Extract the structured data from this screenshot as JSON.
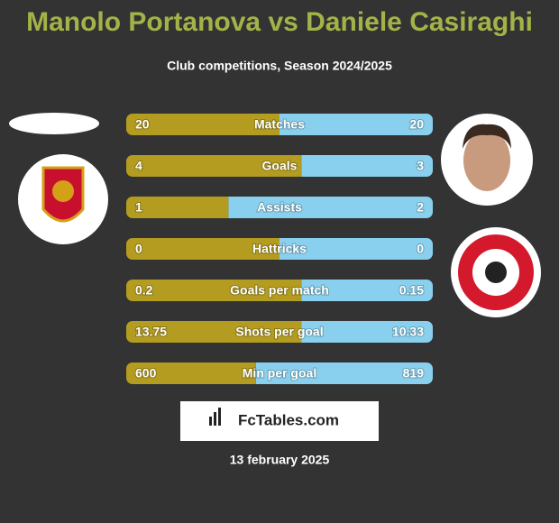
{
  "title": "Manolo Portanova vs Daniele Casiraghi",
  "subtitle": "Club competitions, Season 2024/2025",
  "rows": [
    {
      "label": "Matches",
      "left": 20,
      "right": 20
    },
    {
      "label": "Goals",
      "left": 4,
      "right": 3
    },
    {
      "label": "Assists",
      "left": 1,
      "right": 2
    },
    {
      "label": "Hattricks",
      "left": 0,
      "right": 0
    },
    {
      "label": "Goals per match",
      "left": 0.2,
      "right": 0.15
    },
    {
      "label": "Shots per goal",
      "left": 13.75,
      "right": 10.33
    },
    {
      "label": "Min per goal",
      "left": 600,
      "right": 819
    }
  ],
  "brand": "FcTables.com",
  "date": "13 february 2025"
}
